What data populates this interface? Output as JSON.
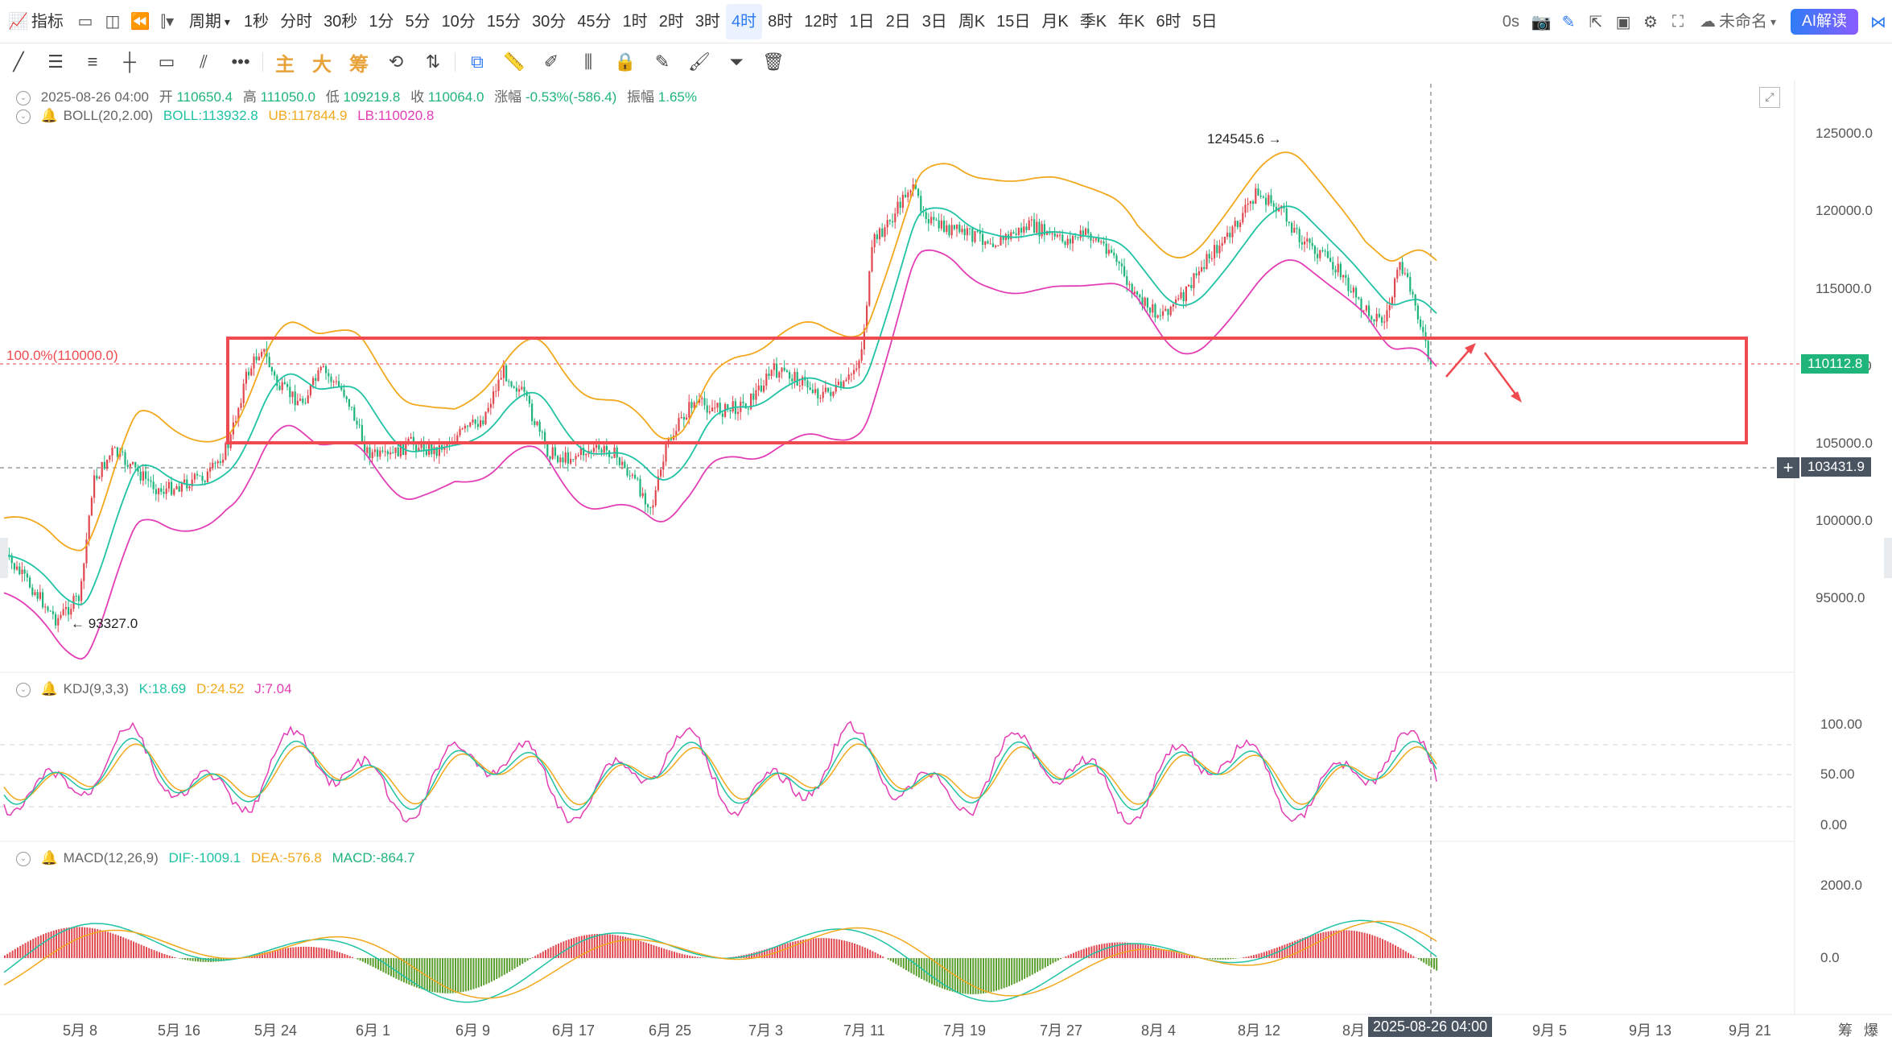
{
  "toolbar": {
    "indicator_label": "指标",
    "period_label": "周期",
    "periods": [
      "1秒",
      "分时",
      "30秒",
      "1分",
      "5分",
      "10分",
      "15分",
      "30分",
      "45分",
      "1时",
      "2时",
      "3时",
      "4时",
      "8时",
      "12时",
      "1日",
      "2日",
      "3日",
      "周K",
      "15日",
      "月K",
      "季K",
      "年K",
      "6时",
      "5日"
    ],
    "active_period": "4时",
    "countdown": "0s",
    "layout_name": "未命名",
    "ai_label": "AI解读"
  },
  "drawing_tools": {
    "main_label": "主",
    "big_label": "大",
    "chip_label": "筹"
  },
  "ohlc": {
    "date": "2025-08-26 04:00",
    "open_label": "开",
    "open": "110650.4",
    "high_label": "高",
    "high": "111050.0",
    "low_label": "低",
    "low": "109219.8",
    "close_label": "收",
    "close": "110064.0",
    "change_label": "涨幅",
    "change": "-0.53%(-586.4)",
    "amp_label": "振幅",
    "amp": "1.65%"
  },
  "boll": {
    "name": "BOLL(20,2.00)",
    "mid": "BOLL:113932.8",
    "ub": "UB:117844.9",
    "lb": "LB:110020.8"
  },
  "kdj": {
    "name": "KDJ(9,3,3)",
    "k": "K:18.69",
    "d": "D:24.52",
    "j": "J:7.04"
  },
  "macd": {
    "name": "MACD(12,26,9)",
    "dif": "DIF:-1009.1",
    "dea": "DEA:-576.8",
    "macd": "MACD:-864.7"
  },
  "price_axis": [
    "125000.0",
    "120000.0",
    "115000.0",
    "110000.0",
    "105000.0",
    "100000.0",
    "95000.0"
  ],
  "kdj_axis": [
    "100.00",
    "50.00",
    "0.00"
  ],
  "macd_axis": [
    "2000.0",
    "0.0"
  ],
  "fib_label": "100.0%(110000.0)",
  "current_price": "110112.8",
  "crosshair_price": "103431.9",
  "high_marker": "124545.6",
  "low_marker": "93327.0",
  "dates": [
    "5月 8",
    "5月 16",
    "5月 24",
    "6月 1",
    "6月 9",
    "6月 17",
    "6月 25",
    "7月 3",
    "7月 11",
    "7月 19",
    "7月 27",
    "8月 4",
    "8月 12",
    "8月 2",
    "9月 5",
    "9月 13",
    "9月 21"
  ],
  "crosshair_date": "2025-08-26 04:00",
  "bottom_right": [
    "筹",
    "爆"
  ],
  "colors": {
    "up": "#e0474f",
    "down": "#1fb57a",
    "boll_mid": "#1fc3a4",
    "boll_ub": "#f2a81d",
    "boll_lb": "#e33eb5",
    "box": "#ef4a4f",
    "accent": "#2f7cf6"
  }
}
